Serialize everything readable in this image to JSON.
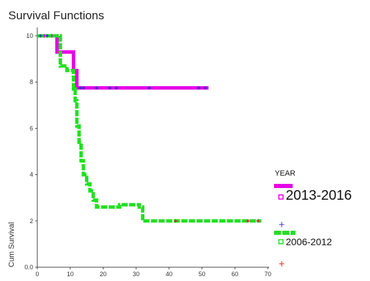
{
  "chart_data": {
    "type": "line",
    "step": true,
    "title": "Survival Functions",
    "xlabel": "",
    "ylabel": "Cum Survival",
    "xlim": [
      0,
      70
    ],
    "ylim": [
      0,
      10
    ],
    "x_ticks": [
      "0",
      "10",
      "20",
      "30",
      "40",
      "50",
      "60",
      "70"
    ],
    "y_ticks": [
      "0.0",
      "2",
      "4",
      "6",
      "8",
      "10"
    ],
    "grid": false,
    "legend": {
      "title": "YEAR",
      "placement": "right",
      "entries": [
        {
          "name": "2013-2016",
          "color": "#e600e6"
        },
        {
          "name": "2006-2012",
          "color": "#22e022"
        }
      ]
    },
    "series": [
      {
        "name": "2013-2016",
        "color": "#e600e6",
        "censor_color": "#3333cc",
        "steps": [
          [
            0,
            10
          ],
          [
            6,
            10
          ],
          [
            6,
            9.3
          ],
          [
            9,
            9.3
          ],
          [
            9,
            9.3
          ],
          [
            11,
            9.3
          ],
          [
            11,
            8.5
          ],
          [
            12,
            8.5
          ],
          [
            12,
            7.75
          ],
          [
            52,
            7.75
          ]
        ],
        "censored": [
          [
            1,
            10
          ],
          [
            3,
            10
          ],
          [
            13,
            7.75
          ],
          [
            14,
            7.75
          ],
          [
            18,
            7.75
          ],
          [
            22,
            7.75
          ],
          [
            24,
            7.75
          ],
          [
            34,
            7.75
          ],
          [
            49,
            7.75
          ],
          [
            51,
            7.75
          ]
        ]
      },
      {
        "name": "2006-2012",
        "color": "#22e022",
        "censor_color": "#dd2222",
        "steps": [
          [
            0,
            10
          ],
          [
            7,
            10
          ],
          [
            7,
            8.7
          ],
          [
            9,
            8.7
          ],
          [
            9,
            8.5
          ],
          [
            11,
            8.5
          ],
          [
            11,
            7.7
          ],
          [
            11.5,
            7.7
          ],
          [
            11.5,
            7.2
          ],
          [
            12,
            7.2
          ],
          [
            12,
            6.1
          ],
          [
            12.7,
            6.1
          ],
          [
            12.7,
            5.4
          ],
          [
            13.3,
            5.4
          ],
          [
            13.3,
            4.6
          ],
          [
            14,
            4.6
          ],
          [
            14,
            4.0
          ],
          [
            15,
            4.0
          ],
          [
            15,
            3.6
          ],
          [
            16,
            3.6
          ],
          [
            16,
            3.3
          ],
          [
            17,
            3.3
          ],
          [
            17,
            2.9
          ],
          [
            18,
            2.9
          ],
          [
            18,
            2.6
          ],
          [
            25,
            2.6
          ],
          [
            25,
            2.7
          ],
          [
            31,
            2.7
          ],
          [
            31,
            2.6
          ],
          [
            32,
            2.6
          ],
          [
            32,
            2.0
          ],
          [
            68,
            2.0
          ]
        ],
        "censored": [
          [
            42,
            2.0
          ],
          [
            64,
            2.0
          ],
          [
            67,
            2.0
          ]
        ]
      }
    ]
  }
}
